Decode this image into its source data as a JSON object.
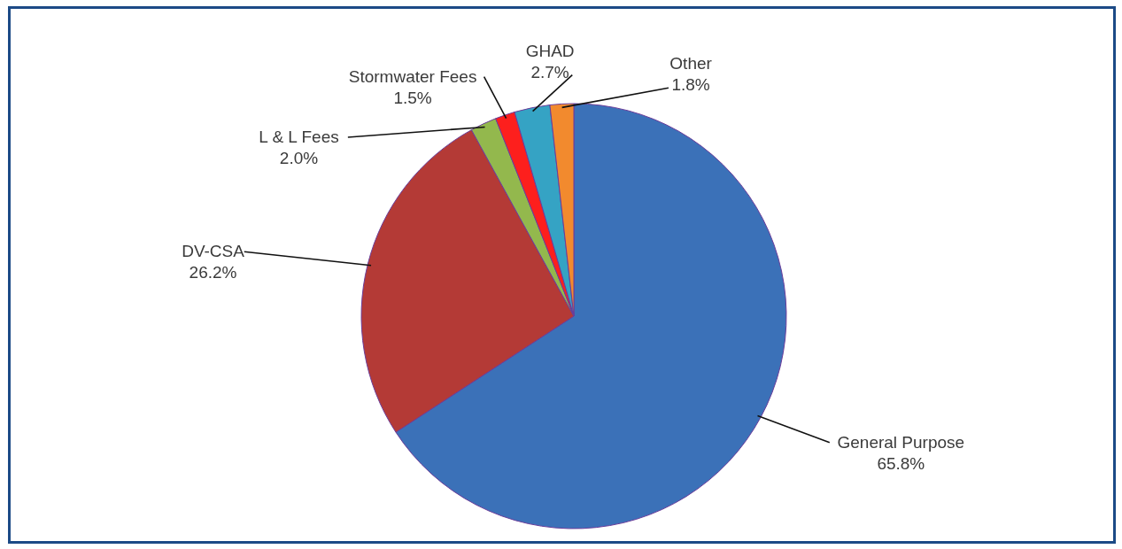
{
  "chart_data": {
    "type": "pie",
    "categories": [
      "General Purpose",
      "DV-CSA",
      "L & L Fees",
      "Stormwater Fees",
      "GHAD",
      "Other"
    ],
    "values": [
      65.8,
      26.2,
      2.0,
      1.5,
      2.7,
      1.8
    ],
    "colors": [
      "#3b71b8",
      "#b43a36",
      "#93b84d",
      "#fd1f1d",
      "#35a3c4",
      "#f28a2e"
    ],
    "value_labels": [
      "65.8%",
      "26.2%",
      "2.0%",
      "1.5%",
      "2.7%",
      "1.8%"
    ]
  }
}
